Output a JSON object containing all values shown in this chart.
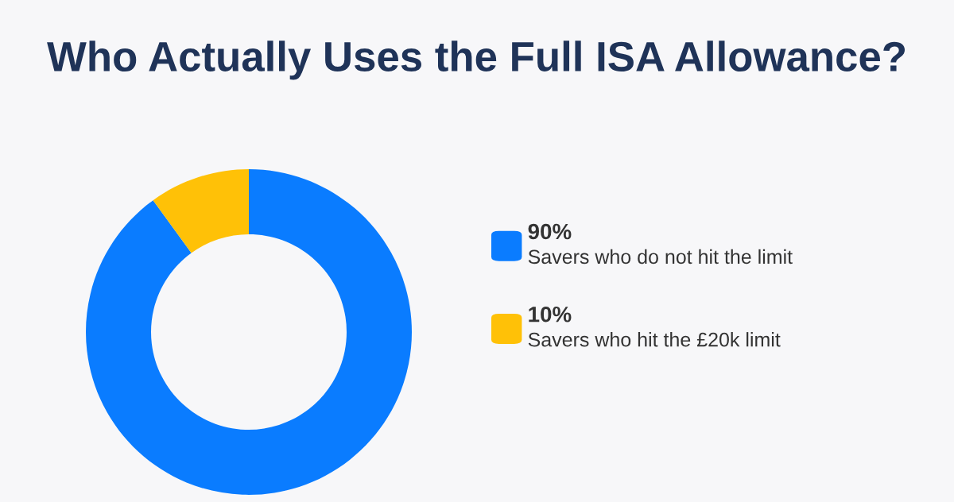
{
  "chart_data": {
    "type": "donut",
    "title": "Who Actually Uses the Full ISA Allowance?",
    "categories": [
      "Savers who do not hit the limit",
      "Savers who hit the £20k limit"
    ],
    "values": [
      90,
      10
    ],
    "value_labels": [
      "90%",
      "10%"
    ],
    "colors": [
      "#0a7cff",
      "#ffc107"
    ],
    "legend": "right"
  }
}
